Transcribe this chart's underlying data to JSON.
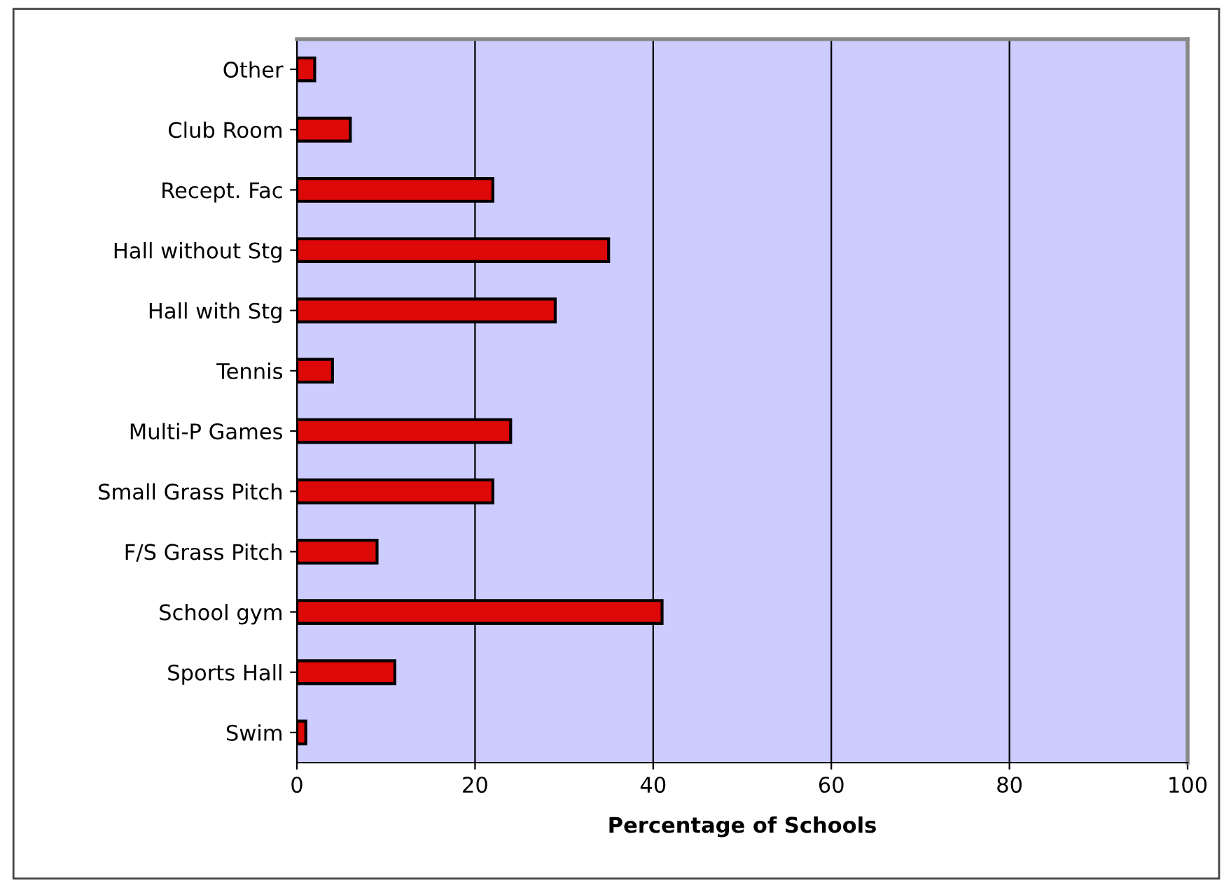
{
  "chart_data": {
    "type": "bar",
    "orientation": "horizontal",
    "xlabel": "Percentage of Schools",
    "categories": [
      "Other",
      "Club Room",
      "Recept. Fac",
      "Hall without Stg",
      "Hall with Stg",
      "Tennis",
      "Multi-P Games",
      "Small Grass Pitch",
      "F/S Grass Pitch",
      "School gym",
      "Sports Hall",
      "Swim"
    ],
    "values": [
      2,
      6,
      22,
      35,
      29,
      4,
      24,
      22,
      9,
      41,
      11,
      1
    ],
    "color": "#dd0808",
    "xlim": [
      0,
      100
    ],
    "xticks": [
      0,
      20,
      40,
      60,
      80,
      100
    ],
    "grid": "x",
    "legend": false
  }
}
